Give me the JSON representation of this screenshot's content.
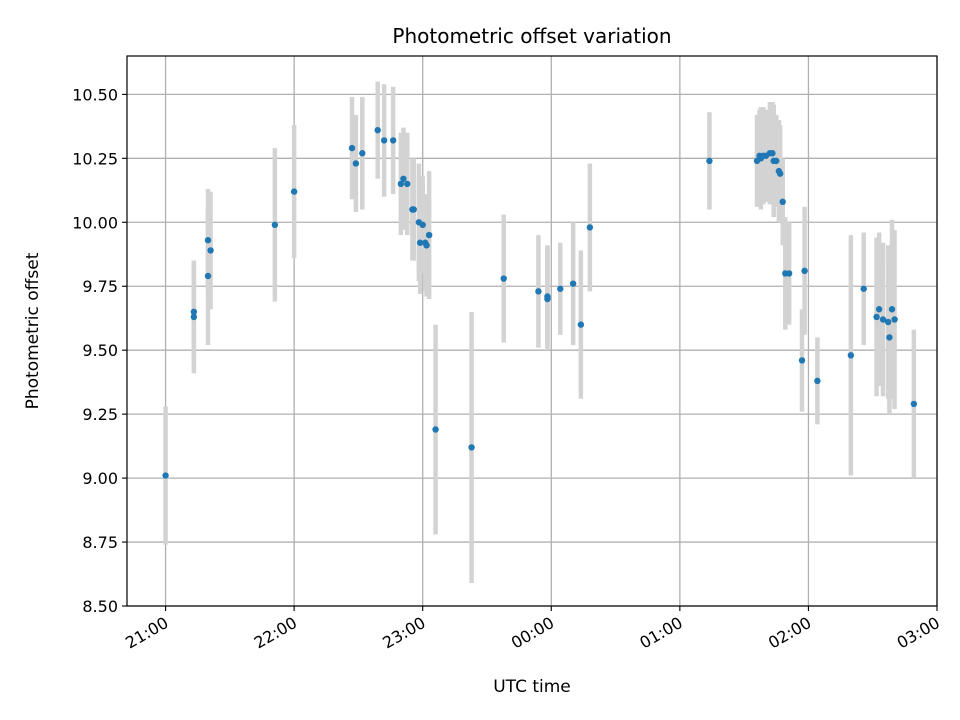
{
  "chart_data": {
    "type": "scatter",
    "title": "Photometric offset variation",
    "xlabel": "UTC time",
    "ylabel": "Photometric offset",
    "x_unit": "hours since 00:00 UTC (hours before midnight negative)",
    "xlim": [
      -3.3,
      3.0
    ],
    "ylim": [
      8.5,
      10.65
    ],
    "x_ticks": [
      {
        "value": -3,
        "label": "21:00"
      },
      {
        "value": -2,
        "label": "22:00"
      },
      {
        "value": -1,
        "label": "23:00"
      },
      {
        "value": 0,
        "label": "00:00"
      },
      {
        "value": 1,
        "label": "01:00"
      },
      {
        "value": 2,
        "label": "02:00"
      },
      {
        "value": 3,
        "label": "03:00"
      }
    ],
    "y_ticks": [
      {
        "value": 8.5,
        "label": "8.50"
      },
      {
        "value": 8.75,
        "label": "8.75"
      },
      {
        "value": 9.0,
        "label": "9.00"
      },
      {
        "value": 9.25,
        "label": "9.25"
      },
      {
        "value": 9.5,
        "label": "9.50"
      },
      {
        "value": 9.75,
        "label": "9.75"
      },
      {
        "value": 10.0,
        "label": "10.00"
      },
      {
        "value": 10.25,
        "label": "10.25"
      },
      {
        "value": 10.5,
        "label": "10.50"
      }
    ],
    "grid": true,
    "colors": {
      "points": "#1f77b4",
      "errorbars": "#d3d3d3",
      "grid": "#b0b0b0"
    },
    "series": [
      {
        "x": [
          -3.0,
          -2.78,
          -2.78,
          -2.67,
          -2.67,
          -2.65,
          -2.15,
          -2.0,
          -1.55,
          -1.52,
          -1.47,
          -1.35,
          -1.3,
          -1.23,
          -1.17,
          -1.15,
          -1.12,
          -1.08,
          -1.07,
          -1.03,
          -1.02,
          -1.0,
          -0.98,
          -0.97,
          -0.95,
          -0.9,
          -0.62,
          -0.37,
          -0.1,
          -0.03,
          -0.03,
          0.07,
          0.17,
          0.23,
          0.3,
          1.23,
          1.6,
          1.62,
          1.63,
          1.65,
          1.67,
          1.7,
          1.72,
          1.73,
          1.75,
          1.77,
          1.78,
          1.8,
          1.82,
          1.85,
          1.95,
          1.97,
          2.07,
          2.33,
          2.43,
          2.53,
          2.55,
          2.58,
          2.62,
          2.63,
          2.65,
          2.67,
          2.82
        ],
        "y": [
          9.01,
          9.63,
          9.65,
          9.93,
          9.79,
          9.89,
          9.99,
          10.12,
          10.29,
          10.23,
          10.27,
          10.36,
          10.32,
          10.32,
          10.15,
          10.17,
          10.15,
          10.05,
          10.05,
          10.0,
          9.92,
          9.99,
          9.92,
          9.91,
          9.95,
          9.19,
          9.12,
          9.78,
          9.73,
          9.7,
          9.71,
          9.74,
          9.76,
          9.6,
          9.98,
          10.24,
          10.24,
          10.26,
          10.25,
          10.26,
          10.26,
          10.27,
          10.27,
          10.24,
          10.24,
          10.2,
          10.19,
          10.08,
          9.8,
          9.8,
          9.46,
          9.81,
          9.38,
          9.48,
          9.74,
          9.63,
          9.66,
          9.62,
          9.61,
          9.55,
          9.66,
          9.62,
          9.29
        ],
        "yerr": [
          0.27,
          0.22,
          0.2,
          0.2,
          0.27,
          0.23,
          0.3,
          0.26,
          0.2,
          0.19,
          0.22,
          0.19,
          0.22,
          0.21,
          0.2,
          0.2,
          0.2,
          0.2,
          0.2,
          0.23,
          0.2,
          0.19,
          0.19,
          0.2,
          0.25,
          0.41,
          0.53,
          0.25,
          0.22,
          0.2,
          0.2,
          0.18,
          0.24,
          0.29,
          0.25,
          0.19,
          0.18,
          0.18,
          0.2,
          0.19,
          0.18,
          0.2,
          0.2,
          0.22,
          0.18,
          0.2,
          0.19,
          0.17,
          0.22,
          0.2,
          0.2,
          0.25,
          0.17,
          0.47,
          0.22,
          0.31,
          0.3,
          0.3,
          0.3,
          0.3,
          0.35,
          0.35,
          0.29
        ]
      }
    ]
  }
}
